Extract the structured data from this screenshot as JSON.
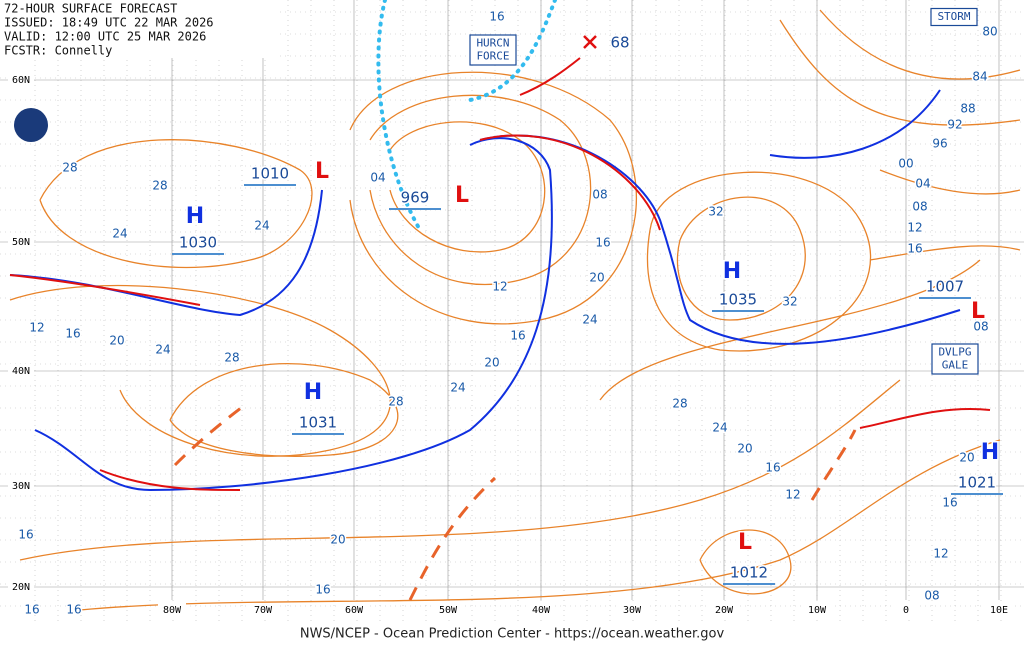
{
  "header": {
    "lines": [
      "72-HOUR SURFACE FORECAST",
      "ISSUED: 18:49 UTC 22 MAR 2026",
      "VALID: 12:00 UTC 25 MAR 2026",
      "FCSTR: Connelly"
    ]
  },
  "footer": "NWS/NCEP - Ocean Prediction Center - https://ocean.weather.gov",
  "lat_labels": [
    "60N",
    "50N",
    "40N",
    "30N",
    "20N"
  ],
  "lon_labels": [
    "80W",
    "70W",
    "60W",
    "50W",
    "40W",
    "30W",
    "20W",
    "10W",
    "0",
    "10E"
  ],
  "pressure_systems": [
    {
      "type": "H",
      "value": "1030"
    },
    {
      "type": "L",
      "value": "1010"
    },
    {
      "type": "L",
      "value": "969"
    },
    {
      "type": "H",
      "value": "1035"
    },
    {
      "type": "H",
      "value": "1031"
    },
    {
      "type": "L",
      "value": "1007"
    },
    {
      "type": "H",
      "value": "1021"
    },
    {
      "type": "L",
      "value": "1012"
    }
  ],
  "isobar_labels": [
    "28",
    "28",
    "24",
    "24",
    "12",
    "16",
    "20",
    "24",
    "28",
    "28",
    "24",
    "20",
    "16",
    "12",
    "04",
    "08",
    "16",
    "20",
    "24",
    "32",
    "32",
    "28",
    "24",
    "20",
    "16",
    "12",
    "16",
    "12",
    "08",
    "20",
    "16",
    "20",
    "16",
    "16",
    "16",
    "16",
    "04",
    "08",
    "12",
    "16",
    "00",
    "96",
    "92",
    "88",
    "84",
    "80",
    "08"
  ],
  "boxed_labels": [
    "STORM",
    "HURCN\nFORCE",
    "DVLPG\nGALE"
  ],
  "storm_max_wind": "68"
}
